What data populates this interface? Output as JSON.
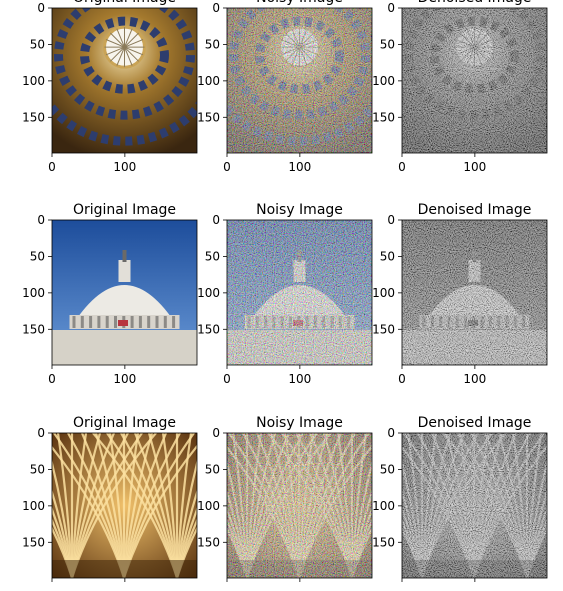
{
  "chart_data": {
    "type": "image-grid",
    "rows": 3,
    "cols": 3,
    "column_titles": [
      "Original Image",
      "Noisy Image",
      "Denoised Image"
    ],
    "image_extent": [
      0,
      199
    ],
    "xticks": [
      0,
      100
    ],
    "yticks": [
      0,
      50,
      100,
      150
    ],
    "row_scenes": [
      "dome-ceiling-oculus",
      "capitol-dome",
      "fan-vault-ceiling"
    ],
    "panels": [
      {
        "row": 0,
        "col": 0,
        "kind": "original",
        "title": "Original Image"
      },
      {
        "row": 0,
        "col": 1,
        "kind": "noisy",
        "title": "Noisy Image"
      },
      {
        "row": 0,
        "col": 2,
        "kind": "denoised",
        "title": "Denoised Image"
      },
      {
        "row": 1,
        "col": 0,
        "kind": "original",
        "title": "Original Image"
      },
      {
        "row": 1,
        "col": 1,
        "kind": "noisy",
        "title": "Noisy Image"
      },
      {
        "row": 1,
        "col": 2,
        "kind": "denoised",
        "title": "Denoised Image"
      },
      {
        "row": 2,
        "col": 0,
        "kind": "original",
        "title": "Original Image"
      },
      {
        "row": 2,
        "col": 1,
        "kind": "noisy",
        "title": "Noisy Image"
      },
      {
        "row": 2,
        "col": 2,
        "kind": "denoised",
        "title": "Denoised Image"
      }
    ]
  }
}
